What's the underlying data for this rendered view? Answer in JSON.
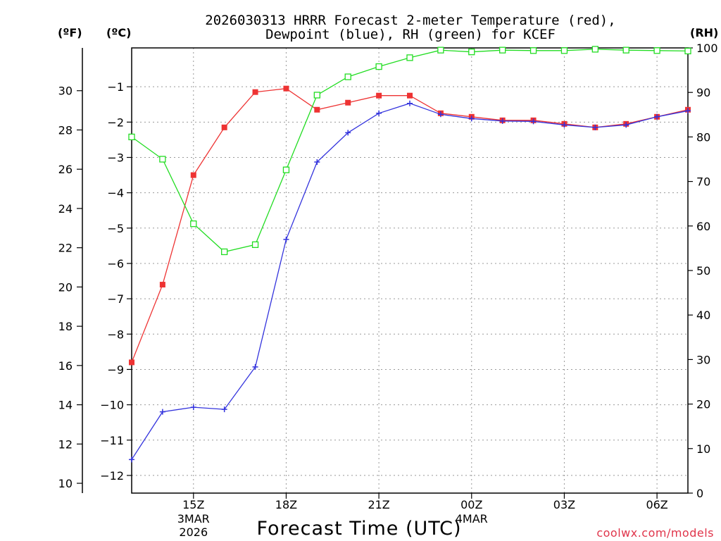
{
  "chart_data": {
    "type": "line",
    "title_line1": "2026030313 HRRR Forecast 2-meter Temperature (red),",
    "title_line2": "Dewpoint (blue), RH (green) for KCEF",
    "left_outer_unit": "(ºF)",
    "left_inner_unit": "(ºC)",
    "right_unit": "(RH)",
    "xlabel": "Forecast Time (UTC)",
    "credit": "coolwx.com/models",
    "x_hours": [
      0,
      1,
      2,
      3,
      4,
      5,
      6,
      7,
      8,
      9,
      10,
      11,
      12,
      13,
      14,
      15,
      16,
      17,
      18
    ],
    "xlim": [
      0,
      18
    ],
    "x_ticks": [
      {
        "hour": 2,
        "label": "15Z",
        "sub1": "3MAR",
        "sub2": "2026"
      },
      {
        "hour": 5,
        "label": "18Z",
        "sub1": "",
        "sub2": ""
      },
      {
        "hour": 8,
        "label": "21Z",
        "sub1": "",
        "sub2": ""
      },
      {
        "hour": 11,
        "label": "00Z",
        "sub1": "4MAR",
        "sub2": ""
      },
      {
        "hour": 14,
        "label": "03Z",
        "sub1": "",
        "sub2": ""
      },
      {
        "hour": 17,
        "label": "06Z",
        "sub1": "",
        "sub2": ""
      }
    ],
    "celsius_range": [
      -12.5,
      0.1
    ],
    "celsius_ticks": [
      "-1",
      "-2",
      "-3",
      "-4",
      "-5",
      "-6",
      "-7",
      "-8",
      "-9",
      "-10",
      "-11",
      "-12"
    ],
    "fahrenheit_ticks": [
      "30",
      "28",
      "26",
      "24",
      "22",
      "20",
      "18",
      "16",
      "14",
      "12",
      "10"
    ],
    "rh_range": [
      0,
      100
    ],
    "rh_ticks": [
      "0",
      "10",
      "20",
      "30",
      "40",
      "50",
      "60",
      "70",
      "80",
      "90",
      "100"
    ],
    "series": [
      {
        "name": "Temperature",
        "color": "#ee3333",
        "marker": "filled-square",
        "axis": "celsius",
        "values": [
          -8.8,
          -6.6,
          -3.5,
          -2.15,
          -1.15,
          -1.05,
          -1.65,
          -1.45,
          -1.25,
          -1.25,
          -1.75,
          -1.85,
          -1.95,
          -1.95,
          -2.05,
          -2.15,
          -2.05,
          -1.85,
          -1.65
        ]
      },
      {
        "name": "Dewpoint",
        "color": "#3333dd",
        "marker": "plus",
        "axis": "celsius",
        "values": [
          -11.55,
          -10.2,
          -10.07,
          -10.13,
          -8.93,
          -5.32,
          -3.13,
          -2.3,
          -1.75,
          -1.47,
          -1.78,
          -1.9,
          -1.97,
          -1.98,
          -2.08,
          -2.15,
          -2.08,
          -1.85,
          -1.68
        ]
      },
      {
        "name": "RH",
        "color": "#22dd22",
        "marker": "open-square",
        "axis": "rh",
        "values": [
          80.0,
          75.0,
          60.5,
          54.2,
          55.8,
          72.6,
          89.4,
          93.5,
          95.8,
          97.8,
          99.5,
          99.1,
          99.5,
          99.4,
          99.4,
          99.7,
          99.5,
          99.4,
          99.3
        ]
      }
    ]
  }
}
